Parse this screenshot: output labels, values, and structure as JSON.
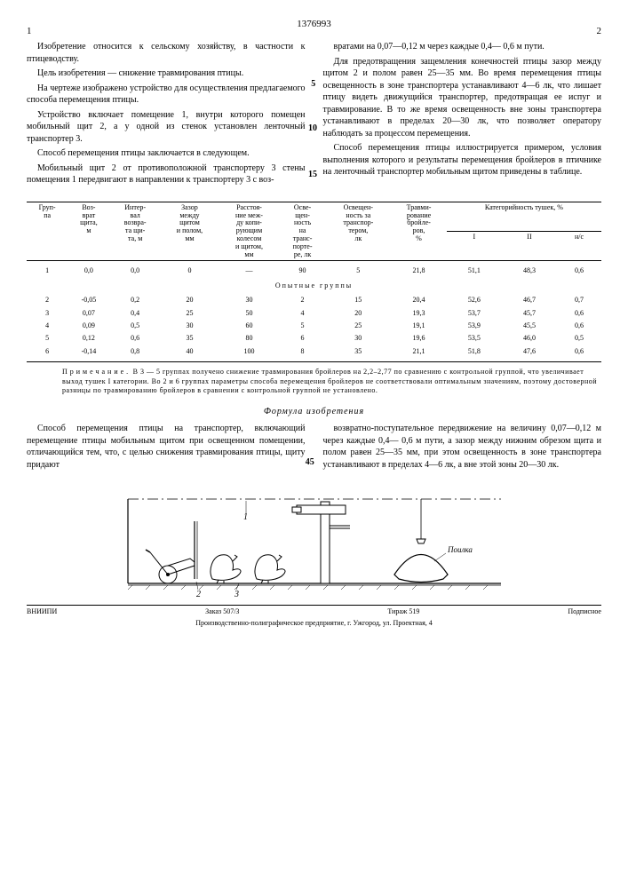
{
  "docnum": "1376993",
  "page_left": "1",
  "page_right": "2",
  "col1": {
    "p1": "Изобретение относится к сельскому хозяйству, в частности к птицеводству.",
    "p2": "Цель изобретения — снижение травмирования птицы.",
    "p3": "На чертеже изображено устройство для осуществления предлагаемого способа перемещения птицы.",
    "p4": "Устройство включает помещение 1, внутри которого помещен мобильный щит 2, а у одной из стенок установлен ленточный транспортер 3.",
    "p5": "Способ перемещения птицы заключается в следующем.",
    "p6": "Мобильный щит 2 от противоположной транспортеру 3 стены помещения 1 передвигают в направлении к транспортеру 3 с воз-"
  },
  "col2": {
    "p1": "вратами на 0,07—0,12 м через каждые 0,4— 0,6 м пути.",
    "p2": "Для предотвращения защемления конечностей птицы зазор между щитом 2 и полом равен 25—35 мм. Во время перемещения птицы освещенность в зоне транспортера устанавливают 4—6 лк, что лишает птицу видеть движущийся транспортер, предотвращая ее испуг и травмирование. В то же время освещенность вне зоны транспортера устанавливают в пределах 20—30 лк, что позволяет оператору наблюдать за процессом перемещения.",
    "p3": "Способ перемещения птицы иллюстрируется примером, условия выполнения которого и результаты перемещения бройлеров в птичнике на ленточный транспортер мобильным щитом приведены в таблице."
  },
  "table": {
    "headers": {
      "h1": "Груп-\nпа",
      "h2": "Воз-\nврат\nщита,\nм",
      "h3": "Интер-\nвал\nвозвра-\nта щи-\nта, м",
      "h4": "Зазор\nмежду\nщитом\nи полом,\nмм",
      "h5": "Расстоя-\nние меж-\nду копи-\nрующим\nколесом\nи щитом,\nмм",
      "h6": "Осве-\nщен-\nность\nна\nтранс-\nпорте-\nре, лк",
      "h7": "Освещен-\nность за\nтранспор-\nтером,\nлк",
      "h8": "Травми-\nрование\nбройле-\nров,\n%",
      "h9": "Категорийность   тушек, %",
      "h9a": "I",
      "h9b": "II",
      "h9c": "н/с"
    },
    "opyt": "Опытные   группы",
    "rows": [
      [
        "1",
        "0,0",
        "0,0",
        "0",
        "—",
        "90",
        "5",
        "21,8",
        "51,1",
        "48,3",
        "0,6"
      ],
      [
        "2",
        "-0,05",
        "0,2",
        "20",
        "30",
        "2",
        "15",
        "20,4",
        "52,6",
        "46,7",
        "0,7"
      ],
      [
        "3",
        "0,07",
        "0,4",
        "25",
        "50",
        "4",
        "20",
        "19,3",
        "53,7",
        "45,7",
        "0,6"
      ],
      [
        "4",
        "0,09",
        "0,5",
        "30",
        "60",
        "5",
        "25",
        "19,1",
        "53,9",
        "45,5",
        "0,6"
      ],
      [
        "5",
        "0,12",
        "0,6",
        "35",
        "80",
        "6",
        "30",
        "19,6",
        "53,5",
        "46,0",
        "0,5"
      ],
      [
        "6",
        "-0,14",
        "0,8",
        "40",
        "100",
        "8",
        "35",
        "21,1",
        "51,8",
        "47,6",
        "0,6"
      ]
    ]
  },
  "note": {
    "label": "Примечание.",
    "text": "В 3 — 5 группах получено снижение травмирования бройлеров на 2,2–2,77 по сравнению с контрольной группой, что увеличивает выход тушек I категории. Во 2 и 6 группах параметры способа перемещения бройлеров не соответствовали оптимальным значениям, поэтому достоверной разницы по травмированию бройлеров в сравнении с контрольной группой не установлено."
  },
  "formula": {
    "title": "Формула изобретения",
    "c1": "Способ перемещения птицы на транспортер, включающий перемещение птицы мобильным щитом при освещенном помещении, отличающийся тем, что, с целью снижения травмирования птицы, щиту придают",
    "c2": "возвратно-поступательное передвижение на величину 0,07—0,12 м через каждые 0,4— 0,6 м пути, а зазор между нижним обрезом щита и полом равен 25—35 мм, при этом освещенность в зоне транспортера устанавливают в пределах 4—6 лк, а вне этой зоны 20—30 лк."
  },
  "fig": {
    "label1": "1",
    "label2": "2",
    "label3": "3",
    "poilka": "Поилка"
  },
  "footer": {
    "left": "ВНИИПИ",
    "zakaz": "Заказ 507/3",
    "tirazh": "Тираж 519",
    "right": "Подписное",
    "bottom": "Производственно-полиграфическое предприятие, г. Ужгород, ул. Проектная, 4"
  }
}
